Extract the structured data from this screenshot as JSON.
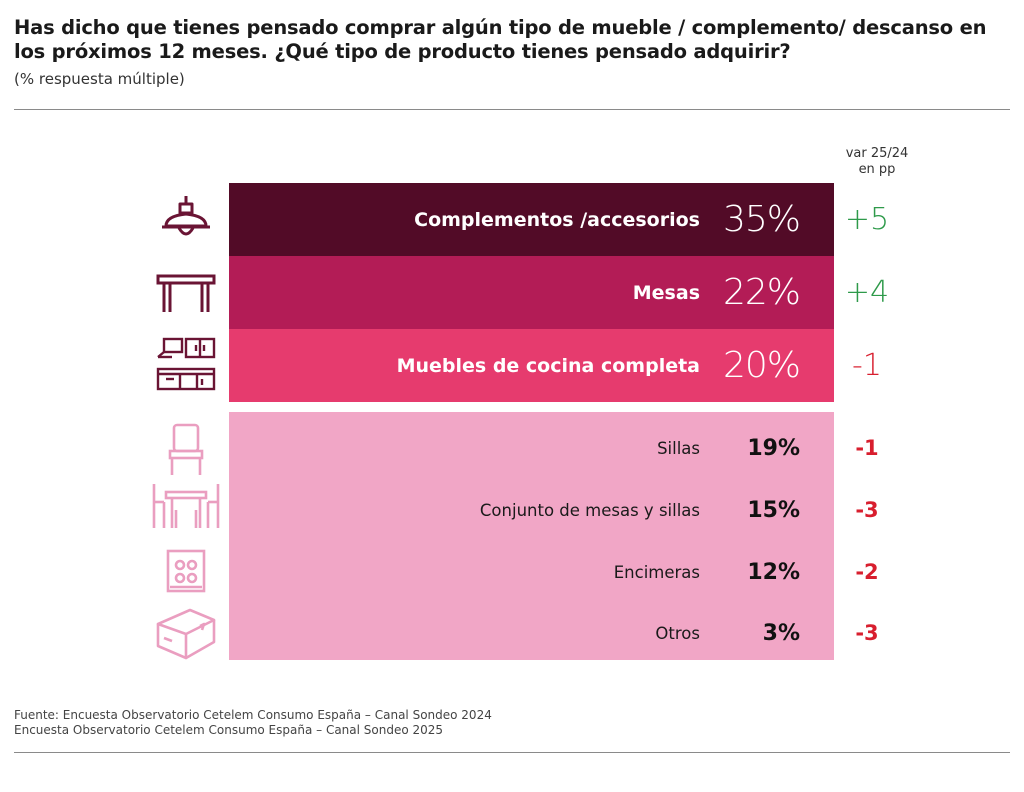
{
  "header": {
    "title": "Has dicho que tienes pensado comprar algún tipo de mueble / complemento/ descanso en los próximos 12 meses. ¿Qué tipo de producto tienes pensado adquirir?",
    "subtitle": "(% respuesta múltiple)",
    "var_header_line1": "var 25/24",
    "var_header_line2": "en pp"
  },
  "colors": {
    "bar_complementos": "#520b27",
    "bar_mesas": "#b31c56",
    "bar_cocina": "#e63b6e",
    "bar_rest": "#f1a6c6",
    "icon_dark": "#6a1434",
    "icon_light": "#ea9ec0",
    "positive": "#2e9a4a",
    "negative": "#d81e2e"
  },
  "chart_data": {
    "type": "bar",
    "orientation": "horizontal",
    "title": "Has dicho que tienes pensado comprar algún tipo de mueble / complemento/ descanso en los próximos 12 meses. ¿Qué tipo de producto tienes pensado adquirir?",
    "subtitle": "(% respuesta múltiple)",
    "unit": "%",
    "categories": [
      "Complementos /accesorios",
      "Mesas",
      "Muebles de cocina completa",
      "Sillas",
      "Conjunto de mesas y sillas",
      "Encimeras",
      "Otros"
    ],
    "values": [
      35,
      22,
      20,
      19,
      15,
      12,
      3
    ],
    "value_labels": [
      "35%",
      "22%",
      "20%",
      "19%",
      "15%",
      "12%",
      "3%"
    ],
    "variation_label": "var 25/24 en pp",
    "variation": [
      5,
      4,
      -1,
      -1,
      -3,
      -2,
      -3
    ],
    "variation_labels": [
      "+5",
      "+4",
      "-1",
      "-1",
      "-3",
      "-2",
      "-3"
    ],
    "icons": [
      "lamp-icon",
      "table-icon",
      "kitchen-icon",
      "chair-icon",
      "dining-set-icon",
      "cooktop-icon",
      "box-icon"
    ]
  },
  "footer": {
    "line1": "Fuente: Encuesta Observatorio Cetelem Consumo España – Canal Sondeo 2024",
    "line2": "Encuesta Observatorio Cetelem Consumo España – Canal Sondeo 2025"
  }
}
